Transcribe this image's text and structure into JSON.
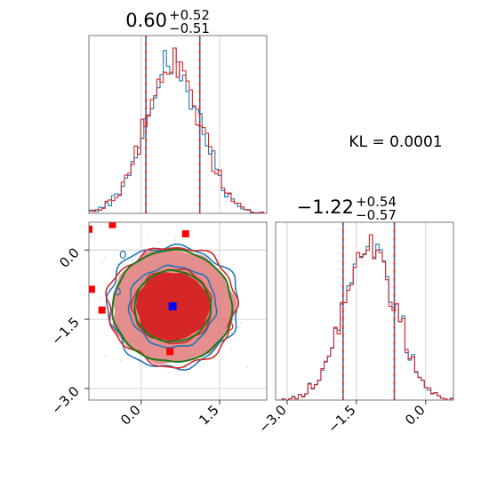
{
  "colors": {
    "blue": "#1f77b4",
    "red": "#d62728",
    "green": "#1a7a1a",
    "grid": "#c8c8c8",
    "axis": "#555555",
    "marker_blue": "#0000ff",
    "marker_red": "#ff0000"
  },
  "chart_data": {
    "type": "corner",
    "kl_text": "KL = 0.0001",
    "params": [
      {
        "title_value": "0.60",
        "title_plus": "+0.52",
        "title_minus": "−0.51",
        "range": [
          -1.0,
          2.4
        ],
        "ticks": [
          0.0,
          1.5
        ],
        "tick_labels": [
          "0.0",
          "1.5"
        ],
        "quantiles": [
          0.09,
          1.12
        ],
        "median": 0.6,
        "sd": 0.52
      },
      {
        "title_value": "−1.22",
        "title_plus": "+0.54",
        "title_minus": "−0.57",
        "range": [
          -3.25,
          0.6
        ],
        "ticks": [
          -3.0,
          -1.5,
          0.0
        ],
        "tick_labels": [
          "−3.0",
          "−1.5",
          "0.0"
        ],
        "quantiles": [
          -1.79,
          -0.68
        ],
        "median": -1.22,
        "sd": 0.55
      }
    ],
    "series": [
      {
        "name": "",
        "color": "blue"
      },
      {
        "name": "",
        "color": "red"
      }
    ],
    "markers": {
      "blue_point": {
        "x": 0.6,
        "y": -1.22
      },
      "red_points": [
        {
          "x": -1.0,
          "y": 0.45
        },
        {
          "x": -0.55,
          "y": 0.55
        },
        {
          "x": 0.85,
          "y": 0.35
        },
        {
          "x": -0.95,
          "y": -0.85
        },
        {
          "x": -0.75,
          "y": -1.3
        },
        {
          "x": 0.55,
          "y": -2.2
        }
      ]
    },
    "grid": true
  }
}
